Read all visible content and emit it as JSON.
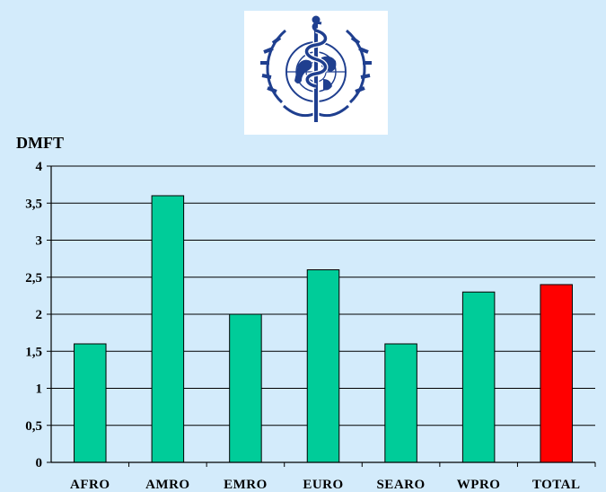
{
  "logo": {
    "name": "WHO emblem",
    "background": "#ffffff",
    "color": "#1f3f8f"
  },
  "chart_data": {
    "type": "bar",
    "ylabel": "DMFT",
    "categories": [
      "AFRO",
      "AMRO",
      "EMRO",
      "EURO",
      "SEARO",
      "WPRO",
      "TOTAL"
    ],
    "values": [
      1.6,
      3.6,
      2.0,
      2.6,
      1.6,
      2.3,
      2.4
    ],
    "ylim": [
      0,
      4
    ],
    "yticks": [
      "0",
      "0,5",
      "1",
      "1,5",
      "2",
      "2,5",
      "3",
      "3,5",
      "4"
    ],
    "grid": true,
    "colors": {
      "bar": "#00cc99",
      "highlight": "#ff0000",
      "highlight_category": "TOTAL",
      "background": "#d3ebfb"
    }
  }
}
